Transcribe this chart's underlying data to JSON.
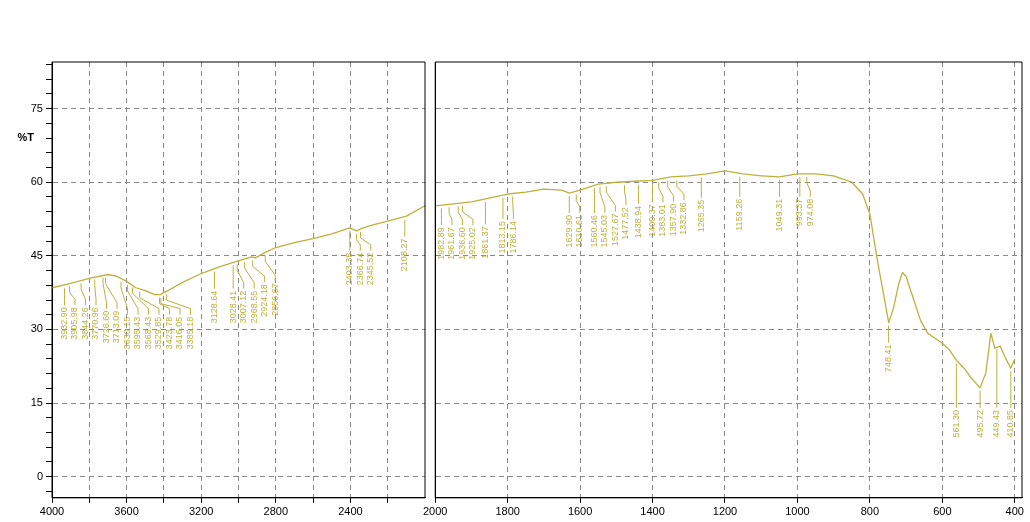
{
  "chart_data": [
    {
      "type": "line",
      "ylabel": "%T",
      "grid": true,
      "marker": "none",
      "xlim": [
        4000,
        2000
      ],
      "ylim": [
        -4.3,
        84.5
      ],
      "xticks": [
        4000,
        {
          "value": 3800,
          "label": null
        },
        3600,
        {
          "value": 3400,
          "label": null
        },
        3200,
        {
          "value": 3000,
          "label": null
        },
        2800,
        {
          "value": 2600,
          "label": null
        },
        2400,
        {
          "value": 2200,
          "label": null
        }
      ],
      "yticks": [
        {
          "value": -3,
          "label": null
        },
        0,
        {
          "value": 3,
          "label": null
        },
        {
          "value": 6,
          "label": null
        },
        {
          "value": 9,
          "label": null
        },
        {
          "value": 12,
          "label": null
        },
        15,
        {
          "value": 18,
          "label": null
        },
        {
          "value": 21,
          "label": null
        },
        {
          "value": 24,
          "label": null
        },
        {
          "value": 27,
          "label": null
        },
        30,
        {
          "value": 33,
          "label": null
        },
        {
          "value": 36,
          "label": null
        },
        {
          "value": 39,
          "label": null
        },
        {
          "value": 42,
          "label": null
        },
        45,
        {
          "value": 48,
          "label": null
        },
        {
          "value": 51,
          "label": null
        },
        {
          "value": 54,
          "label": null
        },
        {
          "value": 57,
          "label": null
        },
        60,
        {
          "value": 63,
          "label": null
        },
        {
          "value": 66,
          "label": null
        },
        {
          "value": 69,
          "label": null
        },
        {
          "value": 72,
          "label": null
        },
        75,
        {
          "value": 78,
          "label": null
        },
        {
          "value": 81,
          "label": null
        },
        {
          "value": 84,
          "label": null
        }
      ],
      "x": [
        4000,
        3900,
        3800,
        3700,
        3650,
        3600,
        3550,
        3500,
        3450,
        3420,
        3380,
        3300,
        3200,
        3100,
        3000,
        2930,
        2910,
        2850,
        2800,
        2700,
        2600,
        2500,
        2403,
        2367,
        2345,
        2300,
        2200,
        2100,
        2000
      ],
      "series": [
        {
          "color": "#bdb13c",
          "values": [
            38.5,
            39.4,
            40.4,
            41.2,
            40.8,
            39.8,
            38.5,
            37.9,
            37.1,
            37.1,
            37.9,
            39.6,
            41.4,
            42.8,
            44.0,
            44.8,
            44.6,
            45.8,
            46.7,
            47.7,
            48.5,
            49.5,
            50.7,
            50.1,
            50.5,
            51.1,
            52.1,
            53.1,
            55.2
          ]
        }
      ],
      "annotations": [
        {
          "text": "3932.90",
          "x": 3932.9,
          "y": 39.0
        },
        {
          "text": "3905.98",
          "x": 3905.98,
          "y": 39.4
        },
        {
          "text": "3844.26",
          "x": 3844.26,
          "y": 40.0
        },
        {
          "text": "3770.96",
          "x": 3770.96,
          "y": 40.8
        },
        {
          "text": "3726.60",
          "x": 3726.6,
          "y": 41.2
        },
        {
          "text": "3713.09",
          "x": 3713.09,
          "y": 41.2
        },
        {
          "text": "3630.15",
          "x": 3630.15,
          "y": 40.3
        },
        {
          "text": "3595.43",
          "x": 3595.43,
          "y": 39.7
        },
        {
          "text": "3568.43",
          "x": 3568.43,
          "y": 39.2
        },
        {
          "text": "3529.85",
          "x": 3529.85,
          "y": 38.3
        },
        {
          "text": "3423.78",
          "x": 3423.78,
          "y": 37.1
        },
        {
          "text": "3416.05",
          "x": 3416.05,
          "y": 37.1
        },
        {
          "text": "3385.18",
          "x": 3385.18,
          "y": 37.8
        },
        {
          "text": "3128.64",
          "x": 3128.64,
          "y": 42.4
        },
        {
          "text": "3028.41",
          "x": 3028.41,
          "y": 43.7
        },
        {
          "text": "3007.12",
          "x": 3007.12,
          "y": 43.9
        },
        {
          "text": "2968.55",
          "x": 2968.55,
          "y": 44.4
        },
        {
          "text": "2924.18",
          "x": 2924.18,
          "y": 44.7
        },
        {
          "text": "2856.67",
          "x": 2856.67,
          "y": 45.7
        },
        {
          "text": "2403.38",
          "x": 2403.38,
          "y": 50.7
        },
        {
          "text": "2366.74",
          "x": 2366.74,
          "y": 50.1
        },
        {
          "text": "2345.52",
          "x": 2345.52,
          "y": 50.5
        },
        {
          "text": "2108.27",
          "x": 2108.27,
          "y": 53.0
        }
      ]
    },
    {
      "type": "line",
      "grid": true,
      "marker": "none",
      "tick_labels": "x",
      "xlim": [
        2000,
        380
      ],
      "ylim": [
        -4.3,
        84.5
      ],
      "xticks": [
        2000,
        1800,
        1600,
        1400,
        1200,
        1000,
        800,
        600,
        400
      ],
      "yticks": [
        0,
        15,
        30,
        45,
        60,
        75
      ],
      "x": [
        2000,
        1900,
        1800,
        1750,
        1700,
        1650,
        1630,
        1600,
        1550,
        1500,
        1450,
        1400,
        1350,
        1300,
        1250,
        1200,
        1150,
        1100,
        1050,
        1000,
        950,
        900,
        850,
        820,
        800,
        780,
        760,
        748,
        735,
        720,
        710,
        700,
        680,
        660,
        640,
        620,
        600,
        580,
        561,
        540,
        520,
        496,
        480,
        466,
        455,
        440,
        425,
        411,
        400
      ],
      "series": [
        {
          "color": "#bdb13c",
          "values": [
            55.2,
            56.0,
            57.6,
            58.0,
            58.6,
            58.4,
            57.8,
            58.4,
            59.6,
            60.0,
            60.2,
            60.4,
            61.1,
            61.3,
            61.7,
            62.3,
            61.7,
            61.3,
            61.1,
            61.7,
            61.7,
            61.3,
            60.0,
            57.6,
            53.5,
            44.4,
            36.3,
            31.4,
            34.3,
            39.4,
            41.6,
            40.8,
            36.3,
            31.8,
            29.2,
            28.2,
            27.2,
            25.8,
            23.7,
            22.1,
            20.1,
            18.1,
            21.1,
            29.2,
            26.2,
            26.6,
            24.1,
            22.1,
            24.0
          ]
        }
      ],
      "annotations": [
        {
          "text": "1982.89",
          "x": 1982.89,
          "y": 55.3
        },
        {
          "text": "1961.67",
          "x": 1961.67,
          "y": 55.5
        },
        {
          "text": "1936.60",
          "x": 1936.6,
          "y": 55.7
        },
        {
          "text": "1925.02",
          "x": 1925.02,
          "y": 55.8
        },
        {
          "text": "1861.37",
          "x": 1861.37,
          "y": 56.6
        },
        {
          "text": "1813.15",
          "x": 1813.15,
          "y": 57.4
        },
        {
          "text": "1786.14",
          "x": 1786.14,
          "y": 57.7
        },
        {
          "text": "1629.90",
          "x": 1629.9,
          "y": 57.8
        },
        {
          "text": "1610.61",
          "x": 1610.61,
          "y": 58.1
        },
        {
          "text": "1560.46",
          "x": 1560.46,
          "y": 59.4
        },
        {
          "text": "1545.03",
          "x": 1545.03,
          "y": 59.7
        },
        {
          "text": "1527.67",
          "x": 1527.67,
          "y": 59.8
        },
        {
          "text": "1477.52",
          "x": 1477.52,
          "y": 60.0
        },
        {
          "text": "1438.94",
          "x": 1438.94,
          "y": 60.1
        },
        {
          "text": "1400.37",
          "x": 1400.37,
          "y": 60.4
        },
        {
          "text": "1383.01",
          "x": 1383.01,
          "y": 60.6
        },
        {
          "text": "1357.90",
          "x": 1357.9,
          "y": 60.9
        },
        {
          "text": "1332.86",
          "x": 1332.86,
          "y": 61.0
        },
        {
          "text": "1265.35",
          "x": 1265.35,
          "y": 61.6
        },
        {
          "text": "1159.26",
          "x": 1159.26,
          "y": 61.7
        },
        {
          "text": "1049.31",
          "x": 1049.31,
          "y": 61.1
        },
        {
          "text": "993.37",
          "x": 993.37,
          "y": 61.6
        },
        {
          "text": "974.08",
          "x": 974.08,
          "y": 61.7
        },
        {
          "text": "748.41",
          "x": 748.41,
          "y": 31.4
        },
        {
          "text": "561.30",
          "x": 561.3,
          "y": 23.7
        },
        {
          "text": "495.72",
          "x": 495.72,
          "y": 18.1
        },
        {
          "text": "449.43",
          "x": 449.43,
          "y": 26.6
        },
        {
          "text": "410.85",
          "x": 410.85,
          "y": 22.1
        }
      ]
    }
  ]
}
